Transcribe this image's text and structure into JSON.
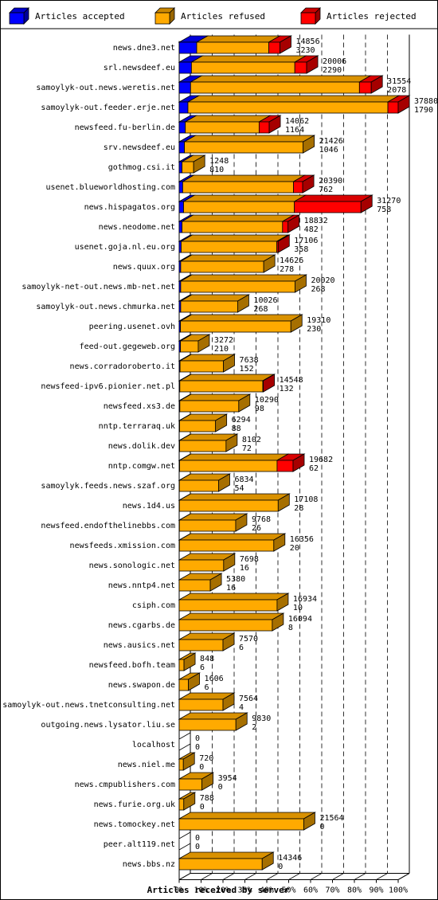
{
  "chart_data": {
    "type": "bar",
    "title": "",
    "xlabel": "Articles received by server",
    "ylabel": "",
    "xlim": [
      0,
      100
    ],
    "x_ticks": [
      "0%",
      "10%",
      "20%",
      "30%",
      "40%",
      "50%",
      "60%",
      "70%",
      "80%",
      "90%",
      "100%"
    ],
    "grid": true,
    "legend_position": "top",
    "series": [
      {
        "name": "Articles accepted",
        "color": "#0000ff",
        "key": "accepted"
      },
      {
        "name": "Articles refused",
        "color": "#ffaa00",
        "key": "refused"
      },
      {
        "name": "Articles rejected",
        "color": "#ff0000",
        "key": "rejected"
      }
    ],
    "rows": [
      {
        "server": "news.dne3.net",
        "total": "14856",
        "rejected_count": "3230",
        "accepted": 8,
        "refused": 32.9,
        "rejected": 5.1
      },
      {
        "server": "srl.newsdeef.eu",
        "total": "20006",
        "rejected_count": "2290",
        "accepted": 5.6,
        "refused": 47.2,
        "rejected": 5.4
      },
      {
        "server": "samoylyk-out.news.weretis.net",
        "total": "31554",
        "rejected_count": "2078",
        "accepted": 5.2,
        "refused": 77.1,
        "rejected": 5.4
      },
      {
        "server": "samoylyk-out.feeder.erje.net",
        "total": "37880",
        "rejected_count": "1790",
        "accepted": 4,
        "refused": 91.3,
        "rejected": 4.7
      },
      {
        "server": "newsfeed.fu-berlin.de",
        "total": "14062",
        "rejected_count": "1164",
        "accepted": 2.8,
        "refused": 33.7,
        "rejected": 4.6
      },
      {
        "server": "srv.newsdeef.eu",
        "total": "21426",
        "rejected_count": "1046",
        "accepted": 2.4,
        "refused": 54.2,
        "rejected": 0
      },
      {
        "server": "gothmog.csi.it",
        "total": "1248",
        "rejected_count": "810",
        "accepted": 1.3,
        "refused": 5.3,
        "rejected": 0
      },
      {
        "server": "usenet.blueworldhosting.com",
        "total": "20390",
        "rejected_count": "762",
        "accepted": 1.6,
        "refused": 50.6,
        "rejected": 4.2
      },
      {
        "server": "news.hispagatos.org",
        "total": "31270",
        "rejected_count": "758",
        "accepted": 2,
        "refused": 50.6,
        "rejected": 30.4
      },
      {
        "server": "news.neodome.net",
        "total": "18832",
        "rejected_count": "482",
        "accepted": 1.3,
        "refused": 45.9,
        "rejected": 2.5
      },
      {
        "server": "usenet.goja.nl.eu.org",
        "total": "17106",
        "rejected_count": "358",
        "accepted": 0.9,
        "refused": 43.7,
        "rejected": 0.6
      },
      {
        "server": "news.quux.org",
        "total": "14626",
        "rejected_count": "278",
        "accepted": 0.7,
        "refused": 37.9,
        "rejected": 0
      },
      {
        "server": "samoylyk-net-out.news.mb-net.net",
        "total": "20020",
        "rejected_count": "268",
        "accepted": 0.7,
        "refused": 52.2,
        "rejected": 0
      },
      {
        "server": "samoylyk-out.news.chmurka.net",
        "total": "10026",
        "rejected_count": "268",
        "accepted": 0.7,
        "refused": 26,
        "rejected": 0
      },
      {
        "server": "peering.usenet.ovh",
        "total": "19310",
        "rejected_count": "230",
        "accepted": 0.6,
        "refused": 50.4,
        "rejected": 0
      },
      {
        "server": "feed-out.gegeweb.org",
        "total": "3272",
        "rejected_count": "210",
        "accepted": 0.6,
        "refused": 8.1,
        "rejected": 0
      },
      {
        "server": "news.corradoroberto.it",
        "total": "7638",
        "rejected_count": "152",
        "accepted": 0.4,
        "refused": 19.8,
        "rejected": 0
      },
      {
        "server": "newsfeed-ipv6.pionier.net.pl",
        "total": "14548",
        "rejected_count": "132",
        "accepted": 0.3,
        "refused": 37.9,
        "rejected": 0.2
      },
      {
        "server": "newsfeed.xs3.de",
        "total": "10290",
        "rejected_count": "98",
        "accepted": 0.3,
        "refused": 26.9,
        "rejected": 0
      },
      {
        "server": "nntp.terraraq.uk",
        "total": "6294",
        "rejected_count": "88",
        "accepted": 0.2,
        "refused": 16.4,
        "rejected": 0
      },
      {
        "server": "news.dolik.dev",
        "total": "8102",
        "rejected_count": "72",
        "accepted": 0.2,
        "refused": 21.2,
        "rejected": 0
      },
      {
        "server": "nntp.comgw.net",
        "total": "19682",
        "rejected_count": "62",
        "accepted": 0.2,
        "refused": 44.5,
        "rejected": 7.3
      },
      {
        "server": "samoylyk.feeds.news.szaf.org",
        "total": "6834",
        "rejected_count": "54",
        "accepted": 0.1,
        "refused": 17.9,
        "rejected": 0
      },
      {
        "server": "news.1d4.us",
        "total": "17108",
        "rejected_count": "28",
        "accepted": 0.1,
        "refused": 45.1,
        "rejected": 0
      },
      {
        "server": "newsfeed.endofthelinebbs.com",
        "total": "9768",
        "rejected_count": "26",
        "accepted": 0.1,
        "refused": 25.7,
        "rejected": 0
      },
      {
        "server": "newsfeeds.xmission.com",
        "total": "16356",
        "rejected_count": "20",
        "accepted": 0.1,
        "refused": 43.1,
        "rejected": 0
      },
      {
        "server": "news.sonologic.net",
        "total": "7698",
        "rejected_count": "16",
        "accepted": 0,
        "refused": 20.3,
        "rejected": 0
      },
      {
        "server": "news.nntp4.net",
        "total": "5380",
        "rejected_count": "16",
        "accepted": 0,
        "refused": 14.2,
        "rejected": 0
      },
      {
        "server": "csiph.com",
        "total": "16934",
        "rejected_count": "10",
        "accepted": 0,
        "refused": 44.7,
        "rejected": 0
      },
      {
        "server": "news.cgarbs.de",
        "total": "16094",
        "rejected_count": "8",
        "accepted": 0,
        "refused": 42.5,
        "rejected": 0
      },
      {
        "server": "news.ausics.net",
        "total": "7570",
        "rejected_count": "6",
        "accepted": 0,
        "refused": 20,
        "rejected": 0
      },
      {
        "server": "newsfeed.bofh.team",
        "total": "848",
        "rejected_count": "6",
        "accepted": 0,
        "refused": 2.2,
        "rejected": 0
      },
      {
        "server": "news.swapon.de",
        "total": "1606",
        "rejected_count": "6",
        "accepted": 0,
        "refused": 4.2,
        "rejected": 0
      },
      {
        "server": "samoylyk-out.news.tnetconsulting.net",
        "total": "7564",
        "rejected_count": "4",
        "accepted": 0,
        "refused": 20,
        "rejected": 0
      },
      {
        "server": "outgoing.news.lysator.liu.se",
        "total": "9830",
        "rejected_count": "2",
        "accepted": 0,
        "refused": 25.9,
        "rejected": 0
      },
      {
        "server": "localhost",
        "total": "0",
        "rejected_count": "0",
        "accepted": 0,
        "refused": 0,
        "rejected": 0
      },
      {
        "server": "news.niel.me",
        "total": "720",
        "rejected_count": "0",
        "accepted": 0,
        "refused": 1.9,
        "rejected": 0
      },
      {
        "server": "news.cmpublishers.com",
        "total": "3954",
        "rejected_count": "0",
        "accepted": 0,
        "refused": 10.4,
        "rejected": 0
      },
      {
        "server": "news.furie.org.uk",
        "total": "788",
        "rejected_count": "0",
        "accepted": 0,
        "refused": 2.1,
        "rejected": 0
      },
      {
        "server": "news.tomockey.net",
        "total": "21564",
        "rejected_count": "0",
        "accepted": 0,
        "refused": 56.9,
        "rejected": 0
      },
      {
        "server": "peer.alt119.net",
        "total": "0",
        "rejected_count": "0",
        "accepted": 0,
        "refused": 0,
        "rejected": 0
      },
      {
        "server": "news.bbs.nz",
        "total": "14346",
        "rejected_count": "0",
        "accepted": 0,
        "refused": 37.9,
        "rejected": 0
      }
    ]
  }
}
